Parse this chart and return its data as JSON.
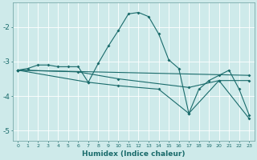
{
  "xlabel": "Humidex (Indice chaleur)",
  "xlim": [
    -0.5,
    23.5
  ],
  "ylim": [
    -5.3,
    -1.3
  ],
  "yticks": [
    -5,
    -4,
    -3,
    -2
  ],
  "xticks": [
    0,
    1,
    2,
    3,
    4,
    5,
    6,
    7,
    8,
    9,
    10,
    11,
    12,
    13,
    14,
    15,
    16,
    17,
    18,
    19,
    20,
    21,
    22,
    23
  ],
  "background_color": "#ceeaea",
  "line_color": "#1a6b6b",
  "grid_color": "#b8d8d8",
  "series1": [
    [
      0,
      -3.25
    ],
    [
      1,
      -3.2
    ],
    [
      2,
      -3.1
    ],
    [
      3,
      -3.1
    ],
    [
      4,
      -3.15
    ],
    [
      5,
      -3.15
    ],
    [
      6,
      -3.15
    ],
    [
      7,
      -3.6
    ],
    [
      8,
      -3.05
    ],
    [
      9,
      -2.55
    ],
    [
      10,
      -2.1
    ],
    [
      11,
      -1.62
    ],
    [
      12,
      -1.58
    ],
    [
      13,
      -1.7
    ],
    [
      14,
      -2.2
    ],
    [
      15,
      -2.95
    ],
    [
      16,
      -3.2
    ],
    [
      17,
      -4.5
    ],
    [
      18,
      -3.8
    ],
    [
      19,
      -3.55
    ],
    [
      20,
      -3.4
    ],
    [
      21,
      -3.25
    ],
    [
      22,
      -3.8
    ],
    [
      23,
      -4.55
    ]
  ],
  "series2": [
    [
      0,
      -3.25
    ],
    [
      23,
      -3.4
    ]
  ],
  "series3": [
    [
      0,
      -3.25
    ],
    [
      7,
      -3.6
    ],
    [
      10,
      -3.7
    ],
    [
      14,
      -3.8
    ],
    [
      17,
      -4.5
    ],
    [
      20,
      -3.55
    ],
    [
      23,
      -4.65
    ]
  ],
  "series4": [
    [
      0,
      -3.25
    ],
    [
      6,
      -3.3
    ],
    [
      10,
      -3.5
    ],
    [
      17,
      -3.75
    ],
    [
      20,
      -3.55
    ],
    [
      23,
      -3.55
    ]
  ]
}
